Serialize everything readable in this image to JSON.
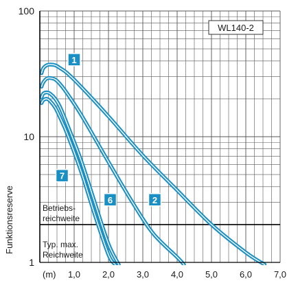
{
  "chart_data": {
    "type": "line",
    "title": "WL140-2",
    "xlabel": "",
    "ylabel": "Funktionsreserve",
    "x_unit": "(m)",
    "xlim": [
      0,
      7
    ],
    "ylim": [
      1,
      100
    ],
    "y_scale": "log",
    "grid": true,
    "x_ticks": [
      "1,0",
      "2,0",
      "3,0",
      "4,0",
      "5,0",
      "6,0",
      "7,0"
    ],
    "y_ticks": [
      "1",
      "10",
      "100"
    ],
    "series": [
      {
        "name": "1",
        "x": [
          0.05,
          0.1,
          0.2,
          0.3,
          0.45,
          0.6,
          0.8,
          1.2,
          2.0,
          3.0,
          4.0,
          5.0,
          6.0,
          6.55
        ],
        "y": [
          32,
          35,
          37,
          37.5,
          37,
          35,
          32,
          25,
          14.5,
          7.1,
          3.75,
          2.0,
          1.2,
          0.96
        ]
      },
      {
        "name": "2",
        "x": [
          0.05,
          0.1,
          0.2,
          0.3,
          0.45,
          0.6,
          0.8,
          1.2,
          2.0,
          2.7,
          3.3,
          4.0,
          4.2
        ],
        "y": [
          25,
          27,
          29,
          29.3,
          28.5,
          26,
          22,
          15,
          6.3,
          3.0,
          1.7,
          1.1,
          0.96
        ]
      },
      {
        "name": "6",
        "x": [
          0.05,
          0.1,
          0.2,
          0.3,
          0.45,
          0.6,
          0.8,
          1.2,
          1.6,
          2.0,
          2.3
        ],
        "y": [
          20.5,
          22,
          22.5,
          22,
          20,
          17,
          12.5,
          6.5,
          3.0,
          1.4,
          0.96
        ]
      },
      {
        "name": "7",
        "x": [
          0.05,
          0.1,
          0.2,
          0.3,
          0.45,
          0.6,
          0.8,
          1.2,
          1.6,
          2.0,
          2.2
        ],
        "y": [
          18.5,
          19.5,
          20,
          19.2,
          17,
          14,
          10.5,
          5.3,
          2.4,
          1.15,
          0.96
        ]
      }
    ],
    "color": "#1a8fc4",
    "reference_line": {
      "y": 2,
      "color": "#000000"
    },
    "annotations": {
      "betrieb_line1": "Betriebs-",
      "betrieb_line2": "reichweite",
      "typ_line1": "Typ. max.",
      "typ_line2": "Reichweite"
    }
  }
}
